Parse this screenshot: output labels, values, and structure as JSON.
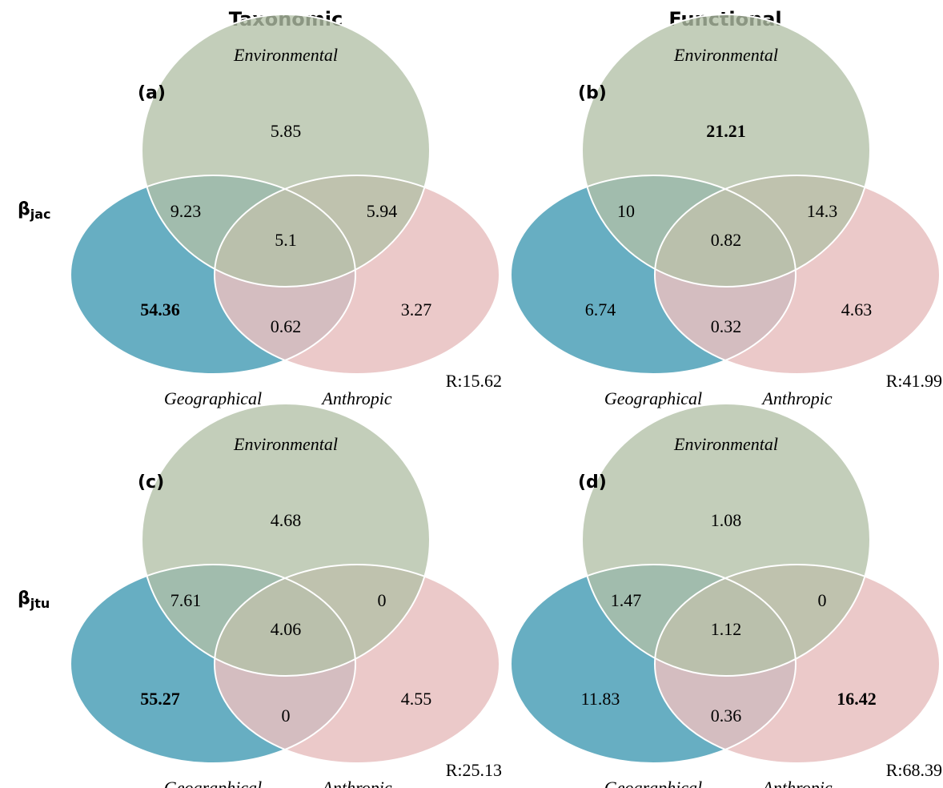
{
  "column_titles": [
    "Taxonomic",
    "Functional"
  ],
  "row_labels": [
    {
      "symbol": "β",
      "subscript": "jac"
    },
    {
      "symbol": "β",
      "subscript": "jtu"
    }
  ],
  "set_labels": {
    "environmental": "Environmental",
    "geographical": "Geographical",
    "anthropic": "Anthropic"
  },
  "colors": {
    "environmental": "#b2c0a6",
    "geographical": "#5aa7bd",
    "anthropic": "#e8c0c0"
  },
  "panels": [
    {
      "letter": "(a)",
      "env_only": "5.85",
      "geo_only": "54.36",
      "anth_only": "3.27",
      "env_geo": "9.23",
      "env_anth": "5.94",
      "geo_anth": "0.62",
      "all": "5.1",
      "residual": "R:15.62",
      "bold": [
        "geo_only"
      ]
    },
    {
      "letter": "(b)",
      "env_only": "21.21",
      "geo_only": "6.74",
      "anth_only": "4.63",
      "env_geo": "10",
      "env_anth": "14.3",
      "geo_anth": "0.32",
      "all": "0.82",
      "residual": "R:41.99",
      "bold": [
        "env_only"
      ]
    },
    {
      "letter": "(c)",
      "env_only": "4.68",
      "geo_only": "55.27",
      "anth_only": "4.55",
      "env_geo": "7.61",
      "env_anth": "0",
      "geo_anth": "0",
      "all": "4.06",
      "residual": "R:25.13",
      "bold": [
        "geo_only"
      ]
    },
    {
      "letter": "(d)",
      "env_only": "1.08",
      "geo_only": "11.83",
      "anth_only": "16.42",
      "env_geo": "1.47",
      "env_anth": "0",
      "geo_anth": "0.36",
      "all": "1.12",
      "residual": "R:68.39",
      "bold": [
        "anth_only"
      ]
    }
  ]
}
